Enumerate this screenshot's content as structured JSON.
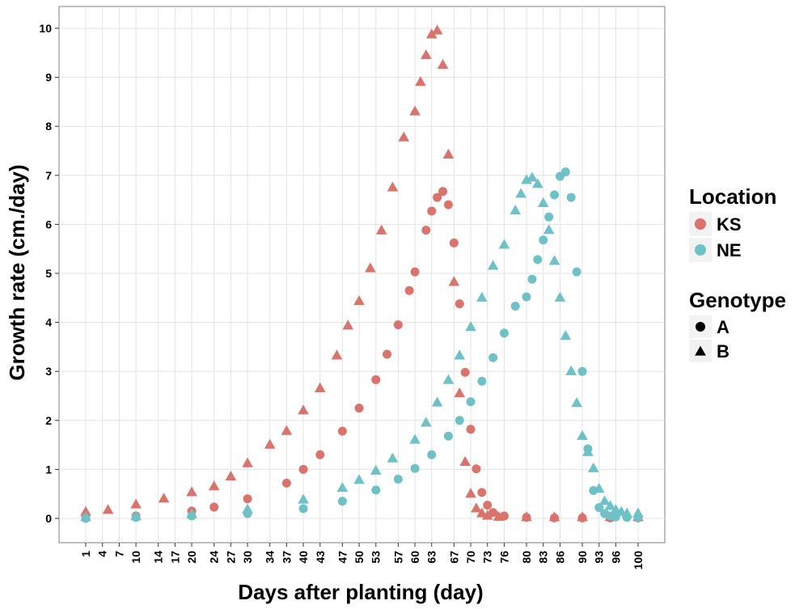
{
  "chart_data": {
    "type": "scatter",
    "title": "",
    "xlabel": "Days after planting (day)",
    "ylabel": "Growth rate (cm./day)",
    "xlim": [
      1,
      100
    ],
    "ylim": [
      0,
      10
    ],
    "yticks": [
      0,
      1,
      2,
      3,
      4,
      5,
      6,
      7,
      8,
      9,
      10
    ],
    "xticks": [
      1,
      4,
      7,
      10,
      14,
      17,
      20,
      24,
      27,
      30,
      34,
      37,
      40,
      43,
      47,
      50,
      53,
      57,
      60,
      63,
      67,
      70,
      73,
      76,
      80,
      83,
      86,
      90,
      93,
      96,
      100
    ],
    "grid": true,
    "legend_position": "right",
    "legend": {
      "color": {
        "title": "Location",
        "entries": [
          {
            "label": "KS",
            "color": "#D9736B"
          },
          {
            "label": "NE",
            "color": "#6EC1C6"
          }
        ]
      },
      "shape": {
        "title": "Genotype",
        "entries": [
          {
            "label": "A",
            "shape": "circle"
          },
          {
            "label": "B",
            "shape": "triangle"
          }
        ]
      }
    },
    "series": [
      {
        "location": "KS",
        "genotype": "A",
        "x": [
          1,
          10,
          20,
          24,
          30,
          37,
          40,
          43,
          47,
          50,
          53,
          55,
          57,
          59,
          60,
          62,
          63,
          64,
          65,
          66,
          67,
          68,
          69,
          70,
          71,
          72,
          73,
          74,
          76,
          80,
          85,
          90,
          95,
          100
        ],
        "y": [
          0.02,
          0.05,
          0.15,
          0.23,
          0.4,
          0.72,
          1.0,
          1.3,
          1.78,
          2.25,
          2.83,
          3.35,
          3.95,
          4.65,
          5.03,
          5.88,
          6.27,
          6.55,
          6.67,
          6.4,
          5.62,
          4.38,
          2.98,
          1.82,
          1.01,
          0.53,
          0.27,
          0.12,
          0.05,
          0.02,
          0.01,
          0.01,
          0.01,
          0.01
        ]
      },
      {
        "location": "KS",
        "genotype": "B",
        "x": [
          1,
          5,
          10,
          15,
          20,
          24,
          27,
          30,
          34,
          37,
          40,
          43,
          46,
          48,
          50,
          52,
          54,
          56,
          58,
          60,
          61,
          62,
          63,
          64,
          65,
          66,
          67,
          68,
          69,
          70,
          71,
          72,
          73,
          75,
          80,
          85,
          90,
          95,
          100
        ],
        "y": [
          0.13,
          0.17,
          0.28,
          0.4,
          0.53,
          0.65,
          0.85,
          1.12,
          1.5,
          1.78,
          2.2,
          2.65,
          3.32,
          3.93,
          4.43,
          5.1,
          5.87,
          6.75,
          7.77,
          8.3,
          8.9,
          9.45,
          9.87,
          9.95,
          9.25,
          7.42,
          4.82,
          2.55,
          1.15,
          0.5,
          0.2,
          0.1,
          0.05,
          0.03,
          0.02,
          0.02,
          0.02,
          0.02,
          0.02
        ]
      },
      {
        "location": "NE",
        "genotype": "A",
        "x": [
          1,
          10,
          20,
          30,
          40,
          47,
          53,
          57,
          60,
          63,
          66,
          68,
          70,
          72,
          74,
          76,
          78,
          80,
          81,
          82,
          83,
          84,
          85,
          86,
          87,
          88,
          89,
          90,
          91,
          92,
          93,
          94,
          95,
          96,
          98,
          100
        ],
        "y": [
          0.0,
          0.02,
          0.05,
          0.1,
          0.2,
          0.35,
          0.58,
          0.8,
          1.02,
          1.3,
          1.68,
          2.0,
          2.38,
          2.8,
          3.28,
          3.78,
          4.33,
          4.52,
          4.88,
          5.28,
          5.68,
          6.15,
          6.6,
          6.98,
          7.07,
          6.55,
          5.03,
          3.0,
          1.42,
          0.57,
          0.22,
          0.1,
          0.05,
          0.03,
          0.02,
          0.02
        ]
      },
      {
        "location": "NE",
        "genotype": "B",
        "x": [
          1,
          10,
          20,
          30,
          40,
          47,
          50,
          53,
          56,
          60,
          62,
          64,
          66,
          68,
          70,
          72,
          74,
          76,
          78,
          79,
          80,
          81,
          82,
          83,
          84,
          85,
          86,
          87,
          88,
          89,
          90,
          91,
          92,
          93,
          94,
          95,
          96,
          97,
          98,
          100
        ],
        "y": [
          0.02,
          0.04,
          0.08,
          0.18,
          0.38,
          0.62,
          0.78,
          0.97,
          1.22,
          1.6,
          1.95,
          2.36,
          2.82,
          3.32,
          3.9,
          4.5,
          5.15,
          5.58,
          6.28,
          6.62,
          6.9,
          6.95,
          6.82,
          6.43,
          5.88,
          5.25,
          4.5,
          3.72,
          3.0,
          2.35,
          1.68,
          1.35,
          1.02,
          0.6,
          0.35,
          0.25,
          0.17,
          0.13,
          0.1,
          0.1
        ]
      }
    ]
  }
}
